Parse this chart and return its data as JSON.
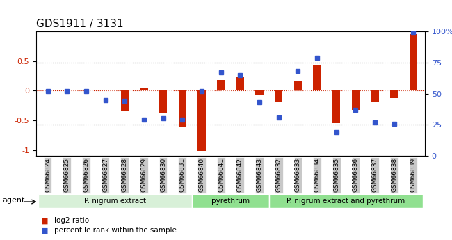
{
  "title": "GDS1911 / 3131",
  "samples": [
    "GSM66824",
    "GSM66825",
    "GSM66826",
    "GSM66827",
    "GSM66828",
    "GSM66829",
    "GSM66830",
    "GSM66831",
    "GSM66840",
    "GSM66841",
    "GSM66842",
    "GSM66843",
    "GSM66832",
    "GSM66833",
    "GSM66834",
    "GSM66835",
    "GSM66836",
    "GSM66837",
    "GSM66838",
    "GSM66839"
  ],
  "log2_ratio": [
    0.02,
    0.0,
    0.0,
    0.0,
    -0.35,
    0.05,
    -0.38,
    -0.62,
    -1.02,
    0.18,
    0.22,
    -0.08,
    -0.18,
    0.17,
    0.42,
    -0.55,
    -0.32,
    -0.18,
    -0.12,
    0.95
  ],
  "pct_rank": [
    52,
    52,
    52,
    45,
    44,
    29,
    30,
    29,
    52,
    67,
    65,
    43,
    31,
    68,
    79,
    19,
    37,
    27,
    26,
    99
  ],
  "groups": [
    {
      "label": "P. nigrum extract",
      "start": 0,
      "end": 8,
      "color": "#c8f0c8"
    },
    {
      "label": "pyrethrum",
      "start": 8,
      "end": 12,
      "color": "#90e090"
    },
    {
      "label": "P. nigrum extract and pyrethrum",
      "start": 12,
      "end": 20,
      "color": "#90e090"
    }
  ],
  "bar_color_red": "#cc2200",
  "bar_color_blue": "#3355cc",
  "dotted_line_color": "#cc2200",
  "ylim_left": [
    -1.1,
    1.0
  ],
  "ylim_right": [
    0,
    100
  ],
  "yticks_left": [
    -1,
    -0.5,
    0,
    0.5
  ],
  "yticks_right": [
    0,
    25,
    50,
    75,
    100
  ],
  "hlines": [
    -0.5,
    0,
    0.5
  ],
  "agent_label": "agent",
  "legend_items": [
    {
      "label": "log2 ratio",
      "color": "#cc2200"
    },
    {
      "label": "percentile rank within the sample",
      "color": "#3355cc"
    }
  ]
}
